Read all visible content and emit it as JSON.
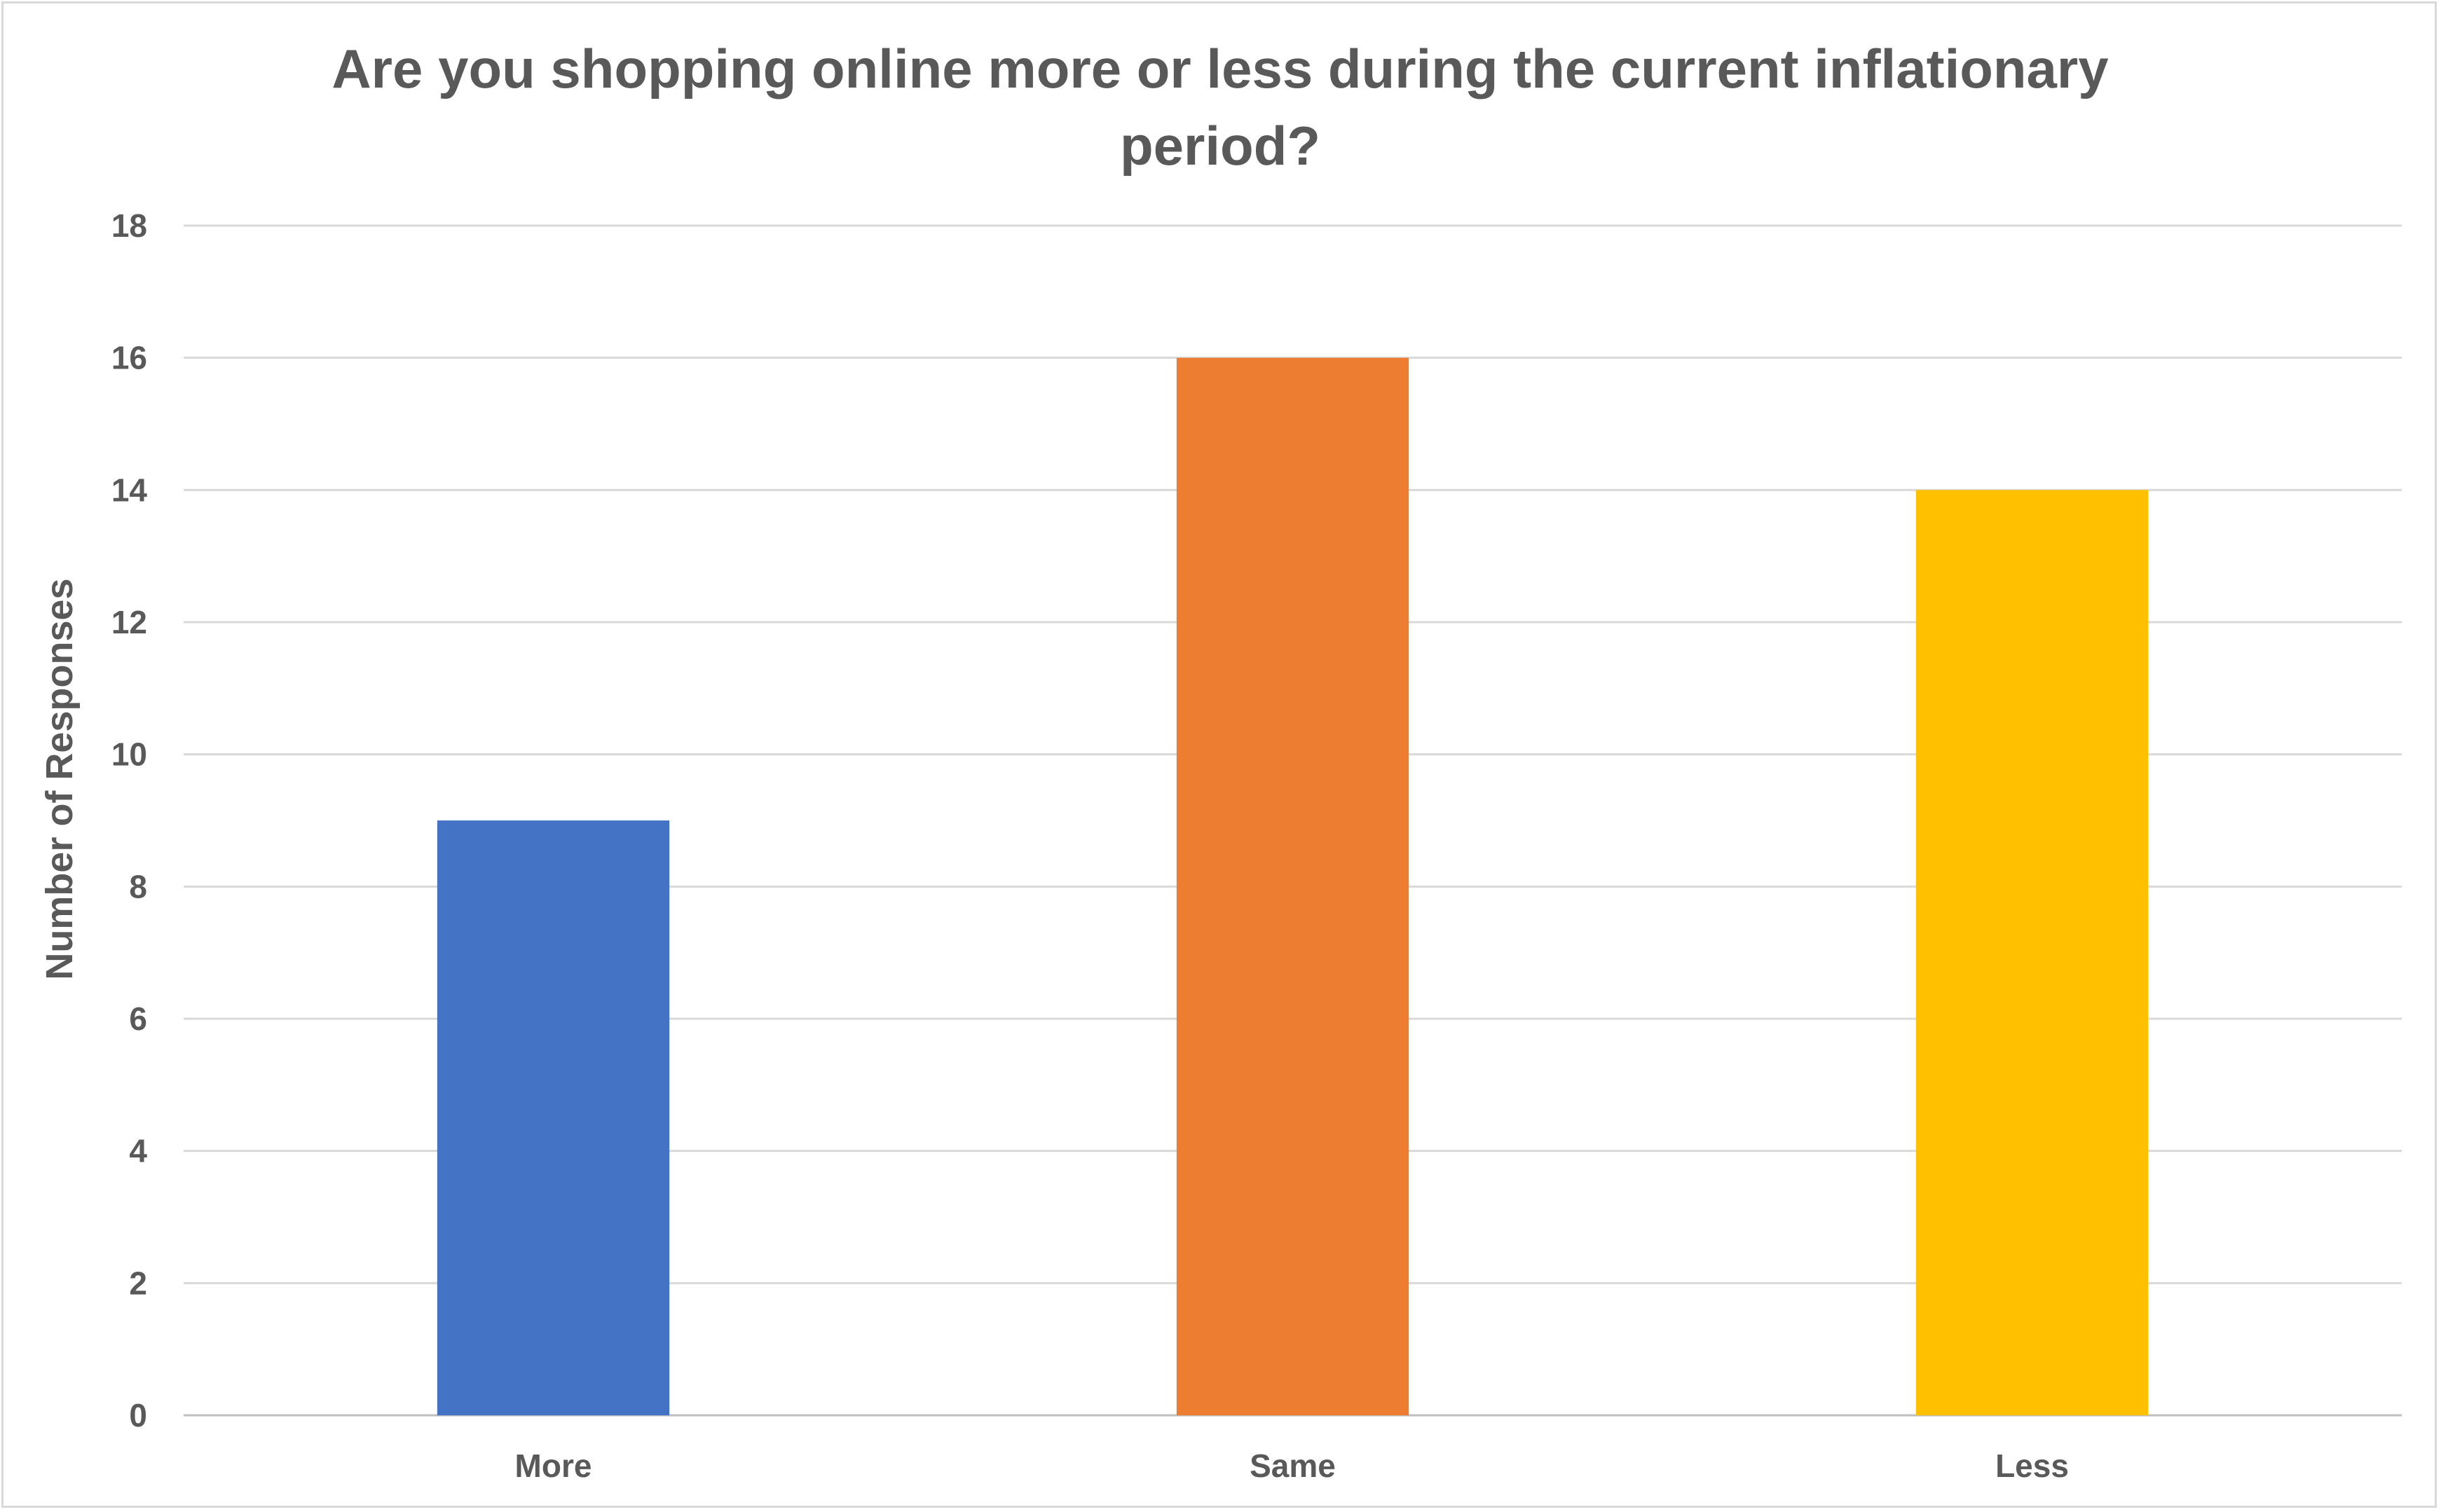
{
  "chart_data": {
    "type": "bar",
    "title_lines": [
      "Are you shopping online more or less during the current inflationary",
      "period?"
    ],
    "categories": [
      "More",
      "Same",
      "Less"
    ],
    "values": [
      9,
      16,
      14
    ],
    "colors": [
      "#4472c4",
      "#ed7d31",
      "#ffc000"
    ],
    "xlabel": "",
    "ylabel": "Number of Responses",
    "ylim": [
      0,
      18
    ],
    "yticks": [
      0,
      2,
      4,
      6,
      8,
      10,
      12,
      14,
      16,
      18
    ],
    "grid": true,
    "legend": "none",
    "gridline_color": "#d9d9d9"
  }
}
